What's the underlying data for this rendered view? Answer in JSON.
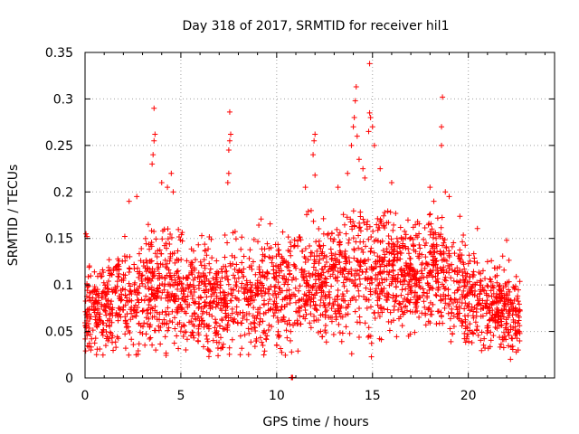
{
  "chart_data": {
    "type": "scatter",
    "title": "Day 318 of 2017, SRMTID for receiver hil1",
    "xlabel": "GPS time / hours",
    "ylabel": "SRMTID / TECUs",
    "xlim": [
      0,
      24.5
    ],
    "ylim": [
      0,
      0.35
    ],
    "x_ticks": [
      0,
      5,
      10,
      15,
      20
    ],
    "x_tick_labels": [
      "0",
      "5",
      "10",
      "15",
      "20"
    ],
    "y_ticks": [
      0,
      0.05,
      0.1,
      0.15,
      0.2,
      0.25,
      0.3,
      0.35
    ],
    "y_tick_labels": [
      "0",
      "0.05",
      "0.1",
      "0.15",
      "0.2",
      "0.25",
      "0.3",
      "0.35"
    ],
    "grid": true,
    "marker": "plus",
    "series": [
      {
        "name": "SRMTID",
        "color": "#ff0000",
        "trend": [
          [
            0.0,
            0.07,
            0.02
          ],
          [
            1.0,
            0.08,
            0.022
          ],
          [
            2.0,
            0.085,
            0.025
          ],
          [
            3.0,
            0.09,
            0.028
          ],
          [
            4.0,
            0.1,
            0.03
          ],
          [
            5.0,
            0.095,
            0.028
          ],
          [
            6.0,
            0.09,
            0.028
          ],
          [
            7.0,
            0.085,
            0.03
          ],
          [
            8.0,
            0.09,
            0.03
          ],
          [
            9.0,
            0.09,
            0.028
          ],
          [
            10.0,
            0.095,
            0.028
          ],
          [
            11.0,
            0.1,
            0.03
          ],
          [
            12.0,
            0.1,
            0.03
          ],
          [
            13.0,
            0.1,
            0.03
          ],
          [
            14.0,
            0.12,
            0.035
          ],
          [
            15.0,
            0.12,
            0.035
          ],
          [
            16.0,
            0.12,
            0.03
          ],
          [
            17.0,
            0.11,
            0.03
          ],
          [
            18.0,
            0.12,
            0.03
          ],
          [
            19.0,
            0.1,
            0.03
          ],
          [
            20.0,
            0.09,
            0.028
          ],
          [
            21.0,
            0.08,
            0.022
          ],
          [
            22.0,
            0.07,
            0.02
          ],
          [
            22.7,
            0.065,
            0.018
          ]
        ],
        "x_range": [
          0.0,
          22.7
        ],
        "point_count": 2600,
        "highlight_points": [
          [
            0.05,
            0.155
          ],
          [
            0.1,
            0.152
          ],
          [
            0.3,
            0.03
          ],
          [
            0.6,
            0.025
          ],
          [
            2.3,
            0.19
          ],
          [
            2.7,
            0.195
          ],
          [
            3.3,
            0.165
          ],
          [
            3.5,
            0.23
          ],
          [
            3.55,
            0.24
          ],
          [
            3.6,
            0.255
          ],
          [
            3.65,
            0.262
          ],
          [
            3.6,
            0.29
          ],
          [
            4.0,
            0.21
          ],
          [
            4.3,
            0.205
          ],
          [
            4.5,
            0.22
          ],
          [
            4.6,
            0.2
          ],
          [
            7.5,
            0.245
          ],
          [
            7.55,
            0.255
          ],
          [
            7.6,
            0.262
          ],
          [
            7.55,
            0.286
          ],
          [
            7.5,
            0.22
          ],
          [
            7.45,
            0.21
          ],
          [
            11.5,
            0.205
          ],
          [
            11.8,
            0.18
          ],
          [
            11.9,
            0.24
          ],
          [
            11.95,
            0.255
          ],
          [
            12.0,
            0.262
          ],
          [
            12.0,
            0.218
          ],
          [
            13.2,
            0.205
          ],
          [
            13.7,
            0.22
          ],
          [
            13.9,
            0.25
          ],
          [
            14.0,
            0.27
          ],
          [
            14.05,
            0.28
          ],
          [
            14.1,
            0.298
          ],
          [
            14.15,
            0.313
          ],
          [
            14.2,
            0.26
          ],
          [
            14.3,
            0.235
          ],
          [
            14.5,
            0.225
          ],
          [
            14.6,
            0.215
          ],
          [
            14.8,
            0.265
          ],
          [
            14.85,
            0.285
          ],
          [
            14.9,
            0.28
          ],
          [
            14.85,
            0.338
          ],
          [
            15.0,
            0.27
          ],
          [
            15.1,
            0.25
          ],
          [
            15.4,
            0.225
          ],
          [
            16.0,
            0.21
          ],
          [
            18.0,
            0.205
          ],
          [
            18.2,
            0.19
          ],
          [
            18.6,
            0.27
          ],
          [
            18.6,
            0.25
          ],
          [
            18.65,
            0.302
          ],
          [
            18.8,
            0.2
          ],
          [
            19.0,
            0.195
          ],
          [
            21.0,
            0.125
          ],
          [
            21.5,
            0.118
          ],
          [
            22.0,
            0.148
          ],
          [
            22.2,
            0.02
          ],
          [
            22.5,
            0.028
          ],
          [
            22.6,
            0.03
          ]
        ],
        "clustered_point": {
          "x": 10.8,
          "y": 0.0
        }
      }
    ]
  }
}
